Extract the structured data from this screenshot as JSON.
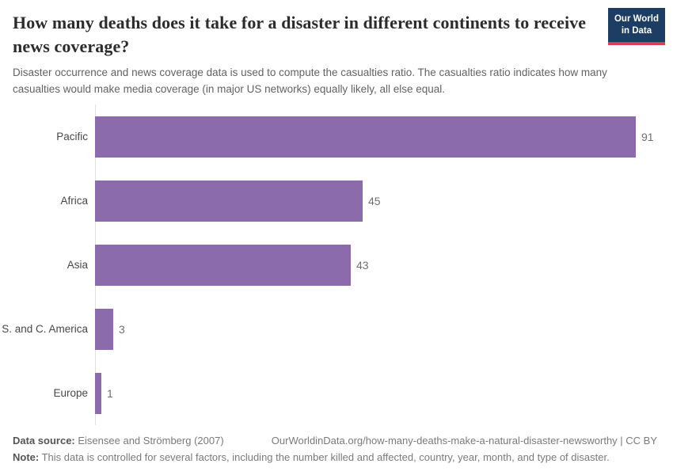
{
  "header": {
    "title": "How many deaths does it take for a disaster in different continents to receive news coverage?",
    "subtitle": "Disaster occurrence and news coverage data is used to compute the casualties ratio. The casualties ratio indicates how many casualties would make media coverage (in major US networks) equally likely, all else equal.",
    "logo": {
      "line1": "Our World",
      "line2": "in Data",
      "bg_color": "#1d3d63",
      "accent_color": "#dc3e4e"
    }
  },
  "chart_data": {
    "type": "bar",
    "orientation": "horizontal",
    "title": "How many deaths does it take for a disaster in different continents to receive news coverage?",
    "categories": [
      "Pacific",
      "Africa",
      "Asia",
      "S. and C. America",
      "Europe"
    ],
    "values": [
      91,
      45,
      43,
      3,
      1
    ],
    "value_labels": [
      "91",
      "45",
      "43",
      "3",
      "1"
    ],
    "xlabel": "",
    "ylabel": "",
    "xlim": [
      0,
      91
    ],
    "grid": false,
    "legend": false,
    "bar_color": "#8c6bac",
    "axis_line_color": "#e0e0e0"
  },
  "footer": {
    "datasource_label": "Data source:",
    "datasource_value": "Eisensee and Strömberg (2007)",
    "link_text": "OurWorldinData.org/how-many-deaths-make-a-natural-disaster-newsworthy | CC BY",
    "note_label": "Note:",
    "note_text": "This data is controlled for several factors, including the number killed and affected, country, year, month, and type of disaster."
  }
}
